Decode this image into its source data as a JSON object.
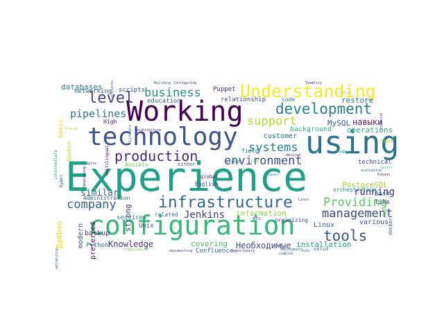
{
  "words": [
    {
      "text": "Experience",
      "color": "#1fa187"
    },
    {
      "text": "configuration",
      "color": "#35b779"
    },
    {
      "text": "Working",
      "color": "#440154"
    },
    {
      "text": "technology",
      "color": "#3b528b"
    },
    {
      "text": "using",
      "color": "#2c728e"
    },
    {
      "text": "infrastructure",
      "color": "#31688e"
    },
    {
      "text": "Understanding",
      "color": "#fde725"
    },
    {
      "text": "development",
      "color": "#287d8e"
    },
    {
      "text": "production",
      "color": "#482878"
    },
    {
      "text": "level",
      "color": "#414487"
    },
    {
      "text": "business",
      "color": "#21918c"
    },
    {
      "text": "systems",
      "color": "#26828e"
    },
    {
      "text": "environment",
      "color": "#3e4a89"
    },
    {
      "text": "support",
      "color": "#b5de2b"
    },
    {
      "text": "company",
      "color": "#355f8d"
    },
    {
      "text": "management",
      "color": "#404588"
    },
    {
      "text": "Providing",
      "color": "#5ec962"
    },
    {
      "text": "tools",
      "color": "#3b528b"
    },
    {
      "text": "pipelines",
      "color": "#2a788e"
    },
    {
      "text": "Jenkins",
      "color": "#443983"
    },
    {
      "text": "running",
      "color": "#472c7a"
    },
    {
      "text": "Knowledge",
      "color": "#46327e"
    },
    {
      "text": "Необходимые",
      "color": "#3f4788"
    },
    {
      "text": "similar",
      "color": "#31688e"
    },
    {
      "text": "covering",
      "color": "#4ac16d"
    },
    {
      "text": "installation",
      "color": "#1f9e89"
    },
    {
      "text": "databases",
      "color": "#27808e"
    },
    {
      "text": "MySQL",
      "color": "#38598c"
    },
    {
      "text": "навыки",
      "color": "#481668"
    },
    {
      "text": "PostgreSQL",
      "color": "#a0da39"
    },
    {
      "text": "restore",
      "color": "#2d708e"
    },
    {
      "text": "operations",
      "color": "#29af7f"
    },
    {
      "text": "strong",
      "color": "#453781"
    },
    {
      "text": "Bamboo",
      "color": "#dde318"
    },
    {
      "text": "modern",
      "color": "#39568c"
    },
    {
      "text": "preferred",
      "color": "#440154"
    },
    {
      "text": "basic",
      "color": "#d8e219"
    },
    {
      "text": "information",
      "color": "#95d840"
    },
    {
      "text": "customer",
      "color": "#2e6e8e"
    },
    {
      "text": "background",
      "color": "#2fb47c"
    },
    {
      "text": "Linux",
      "color": "#33638d"
    },
    {
      "text": "various",
      "color": "#3d4d8a"
    },
    {
      "text": "technical",
      "color": "#3e4989"
    },
    {
      "text": "Bash",
      "color": "#2a768e"
    },
    {
      "text": "like",
      "color": "#46307e"
    },
    {
      "text": "Unix",
      "color": "#3a548c"
    },
    {
      "text": "backup",
      "color": "#472d7b"
    },
    {
      "text": "services",
      "color": "#23898e"
    },
    {
      "text": "Python",
      "color": "#2c718e"
    },
    {
      "text": "Confluence",
      "color": "#345f8d"
    },
    {
      "text": "Puppet",
      "color": "#482576"
    },
    {
      "text": "relationship",
      "color": "#3e4c8a"
    },
    {
      "text": "code",
      "color": "#2d708e"
    },
    {
      "text": "education",
      "color": "#32658e"
    },
    {
      "text": "scripts",
      "color": "#3a538b"
    },
    {
      "text": "networking",
      "color": "#31688e"
    },
    {
      "text": "High",
      "color": "#471365"
    },
    {
      "text": "Ansible",
      "color": "#6ccd5a"
    },
    {
      "text": "Jira",
      "color": "#7ad151"
    },
    {
      "text": "cloud",
      "color": "#26828e"
    },
    {
      "text": "field",
      "color": "#2d708e"
    },
    {
      "text": "English",
      "color": "#3c4f8a"
    },
    {
      "text": "global",
      "color": "#481c6e"
    },
    {
      "text": "organizing",
      "color": "#3f4788"
    },
    {
      "text": "etc",
      "color": "#404688"
    },
    {
      "text": "related",
      "color": "#2c738e"
    },
    {
      "text": "either",
      "color": "#38598c"
    },
    {
      "text": "Administration",
      "color": "#33638d"
    },
    {
      "text": "orchestration",
      "color": "#21908d"
    },
    {
      "text": "Chef",
      "color": "#a8db34"
    },
    {
      "text": "AWS",
      "color": "#5cc863"
    },
    {
      "text": "docker",
      "color": "#3b518b"
    },
    {
      "text": "solid",
      "color": "#2e6d8e"
    },
    {
      "text": "Spoken",
      "color": "#bddf26"
    },
    {
      "text": "multilingual",
      "color": "#440154"
    },
    {
      "text": "Будет",
      "color": "#3a548c"
    },
    {
      "text": "intermediate",
      "color": "#22a785"
    },
    {
      "text": "Agile",
      "color": "#3e4a89"
    },
    {
      "text": "projects",
      "color": "#3f4889"
    },
    {
      "text": "Configuring",
      "color": "#462f7c"
    },
    {
      "text": "Building",
      "color": "#3d4e8a"
    },
    {
      "text": "TeamCity",
      "color": "#46337f"
    },
    {
      "text": "Linkedin",
      "color": "#31688e"
    },
    {
      "text": "developing",
      "color": "#440154"
    },
    {
      "text": "organization",
      "color": "#6ece58"
    },
    {
      "text": "documenting",
      "color": "#3e4a89"
    },
    {
      "text": "deployments",
      "color": "#2d708e"
    },
    {
      "text": "opportunity",
      "color": "#482677"
    },
    {
      "text": "complex",
      "color": "#37598c"
    },
    {
      "text": "role",
      "color": "#3d4d8a"
    },
    {
      "text": "optimizing",
      "color": "#3b518b"
    },
    {
      "text": "Кафка",
      "color": "#29af7f"
    },
    {
      "text": "evaluation",
      "color": "#33638d"
    },
    {
      "text": "skills",
      "color": "#37b878"
    },
    {
      "text": "architecture",
      "color": "#482979"
    },
    {
      "text": "Kibana",
      "color": "#3c4f8a"
    },
    {
      "text": "startup",
      "color": "#a2da37"
    },
    {
      "text": "financial",
      "color": "#443a83"
    },
    {
      "text": "Oracle",
      "color": "#bade28"
    },
    {
      "text": "Linux",
      "color": "#453581"
    },
    {
      "text": "desired",
      "color": "#472f7d"
    },
    {
      "text": "wish",
      "color": "#e2e418"
    },
    {
      "text": "bonus",
      "color": "#20a386"
    },
    {
      "text": "cases",
      "color": "#2a788e"
    }
  ]
}
